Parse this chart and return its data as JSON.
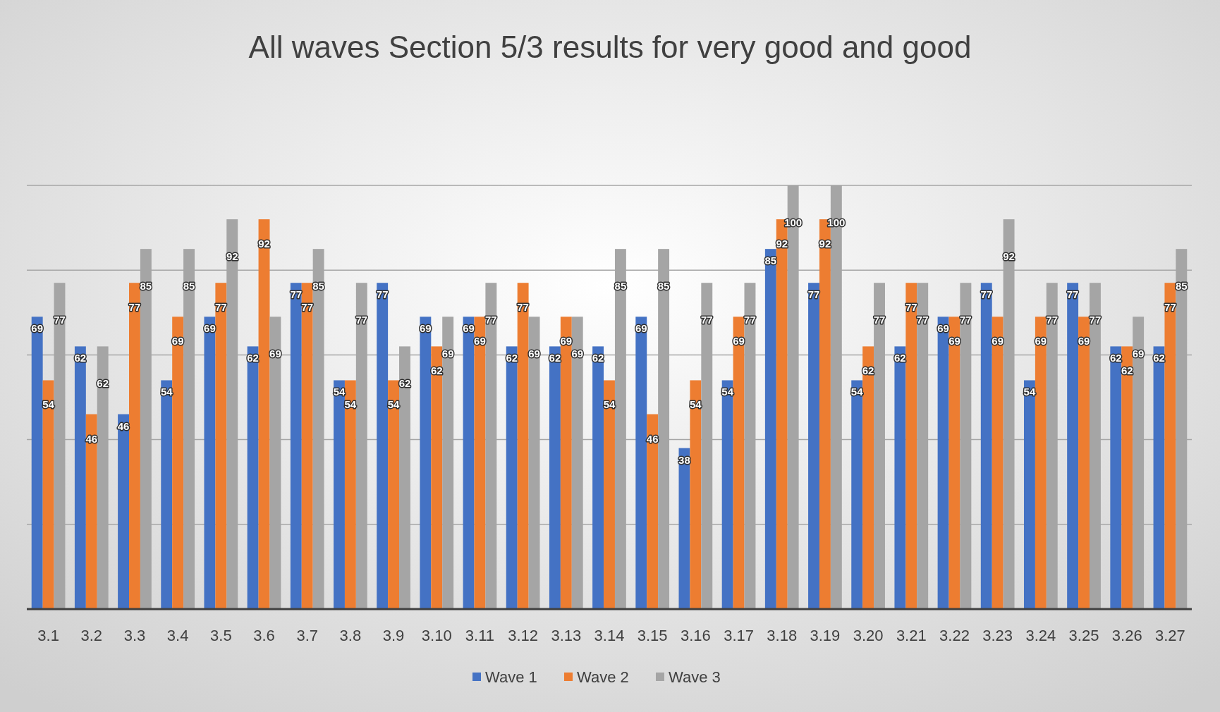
{
  "chart_data": {
    "type": "bar",
    "title": "All waves Section 5/3 results for very good and good",
    "categories": [
      "3.1",
      "3.2",
      "3.3",
      "3.4",
      "3.5",
      "3.6",
      "3.7",
      "3.8",
      "3.9",
      "3.10",
      "3.11",
      "3.12",
      "3.13",
      "3.14",
      "3.15",
      "3.16",
      "3.17",
      "3.18",
      "3.19",
      "3.20",
      "3.21",
      "3.22",
      "3.23",
      "3.24",
      "3.25",
      "3.26",
      "3.27"
    ],
    "series": [
      {
        "name": "Wave 1",
        "color": "#4472c4",
        "values": [
          69,
          62,
          46,
          54,
          69,
          62,
          77,
          54,
          77,
          69,
          69,
          62,
          62,
          62,
          69,
          38,
          54,
          85,
          77,
          54,
          62,
          69,
          77,
          54,
          77,
          62,
          62
        ]
      },
      {
        "name": "Wave 2",
        "color": "#ed7d31",
        "values": [
          54,
          46,
          77,
          69,
          77,
          92,
          77,
          54,
          54,
          62,
          69,
          77,
          69,
          54,
          46,
          54,
          69,
          92,
          92,
          62,
          77,
          69,
          69,
          69,
          69,
          62,
          77
        ]
      },
      {
        "name": "Wave 3",
        "color": "#a5a5a5",
        "values": [
          77,
          62,
          85,
          85,
          92,
          69,
          85,
          77,
          62,
          69,
          77,
          69,
          69,
          85,
          85,
          77,
          77,
          100,
          100,
          77,
          77,
          77,
          92,
          77,
          77,
          69,
          85
        ]
      }
    ],
    "ylim": [
      0,
      100
    ],
    "yticks": [
      {
        "value": 0,
        "label": null
      },
      {
        "value": 20,
        "label": null
      },
      {
        "value": 40,
        "label": null
      },
      {
        "value": 60,
        "label": null
      },
      {
        "value": 80,
        "label": null
      },
      {
        "value": 100,
        "label": null
      }
    ],
    "tick_labels": "x",
    "grid": "y",
    "legend": "bottom",
    "data_labels": true
  }
}
